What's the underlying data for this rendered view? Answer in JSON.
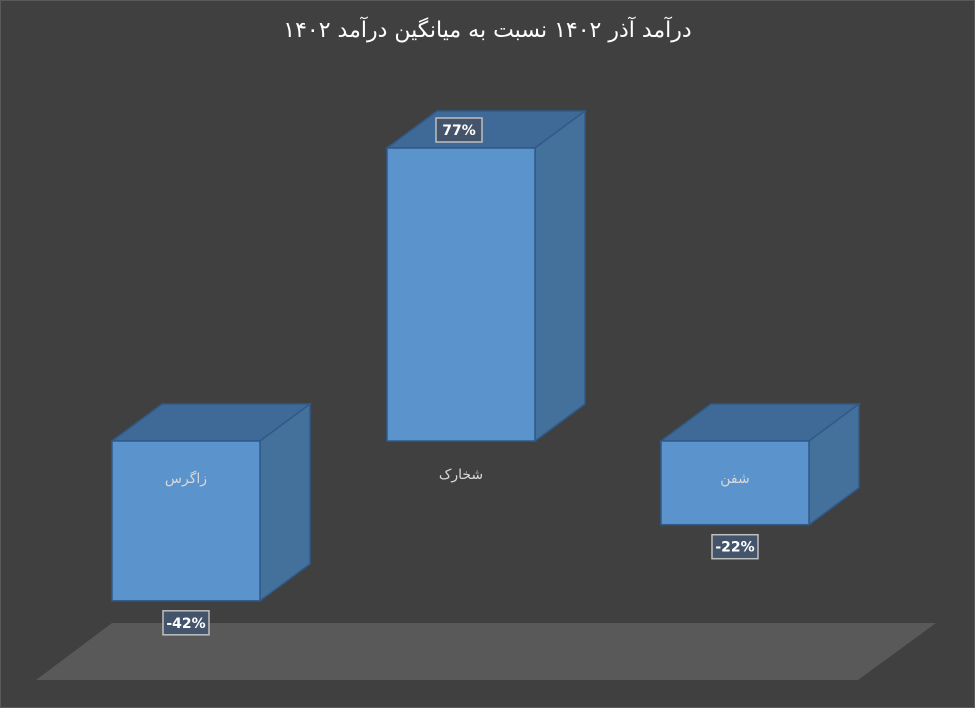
{
  "chart_data": {
    "type": "bar",
    "title": "درآمد آذر ۱۴۰۲ نسبت به میانگین درآمد ۱۴۰۲",
    "categories": [
      "زاگرس",
      "شخارک",
      "شفن"
    ],
    "values": [
      -42,
      77,
      -22
    ],
    "value_labels": [
      "-42%",
      "77%",
      "-22%"
    ],
    "style": "3d-column",
    "colors": {
      "front": "#5b93cc",
      "side": "#44709c",
      "top": "#3f6996",
      "edge": "#2f5a8a",
      "floor": "#595959",
      "background": "#404040"
    }
  }
}
